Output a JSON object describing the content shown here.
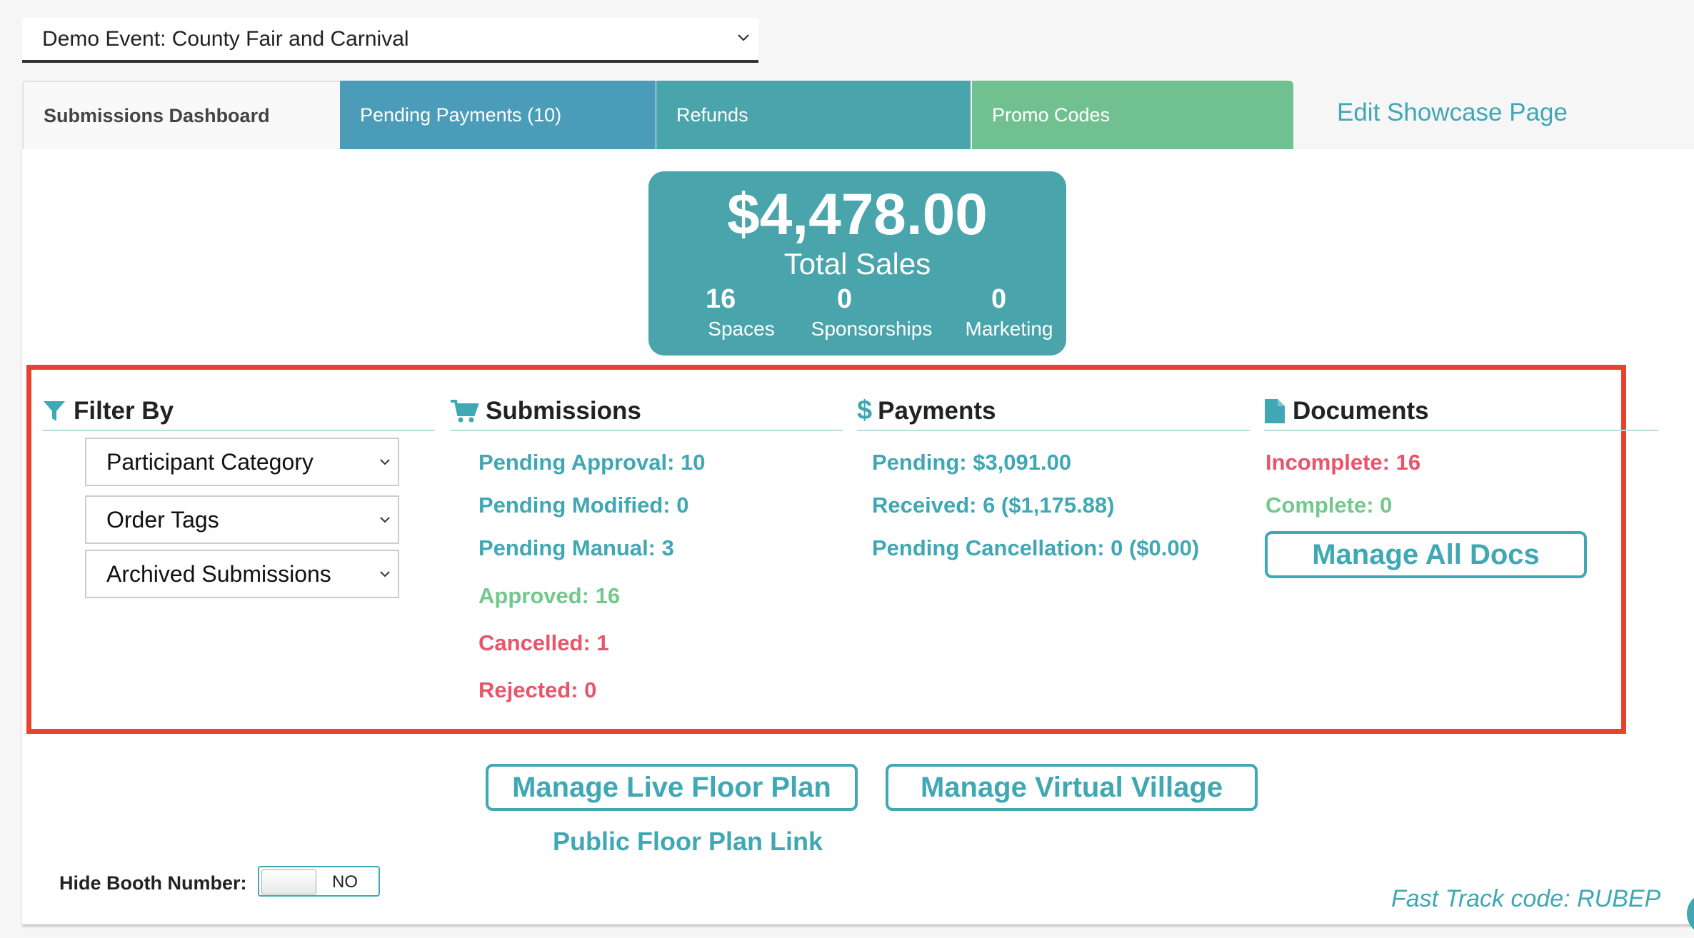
{
  "event_select": {
    "value": "Demo Event: County Fair and Carnival"
  },
  "tabs": {
    "dashboard": "Submissions Dashboard",
    "pending_payments": "Pending Payments (10)",
    "refunds": "Refunds",
    "promo_codes": "Promo Codes",
    "edit_showcase": "Edit Showcase Page"
  },
  "totals": {
    "amount": "$4,478.00",
    "label": "Total Sales",
    "stats": [
      {
        "value": "16",
        "label": "Spaces"
      },
      {
        "value": "0",
        "label": "Sponsorships"
      },
      {
        "value": "0",
        "label": "Marketing"
      }
    ]
  },
  "filter": {
    "title": "Filter By",
    "selects": [
      "Participant Category",
      "Order Tags",
      "Archived Submissions"
    ]
  },
  "submissions": {
    "title": "Submissions",
    "pending_approval": "Pending Approval: 10",
    "pending_modified": "Pending Modified: 0",
    "pending_manual": "Pending Manual: 3",
    "approved": "Approved: 16",
    "cancelled": "Cancelled: 1",
    "rejected": "Rejected: 0"
  },
  "payments": {
    "title": "Payments",
    "pending": "Pending: $3,091.00",
    "received": "Received: 6 ($1,175.88)",
    "pending_cancellation": "Pending Cancellation: 0 ($0.00)"
  },
  "documents": {
    "title": "Documents",
    "incomplete": "Incomplete: 16",
    "complete": "Complete: 0",
    "manage_button": "Manage All Docs"
  },
  "actions": {
    "floor_plan": "Manage Live Floor Plan",
    "virtual_village": "Manage Virtual Village",
    "public_link": "Public Floor Plan Link"
  },
  "hide_booth": {
    "label": "Hide Booth Number:",
    "toggle_value": "NO"
  },
  "fast_track": "Fast Track code: RUBEP",
  "colors": {
    "teal": "#3fa8b4",
    "green": "#72c98c",
    "red": "#e8546a",
    "highlight": "#e8432e",
    "card": "#4aa4ab"
  }
}
